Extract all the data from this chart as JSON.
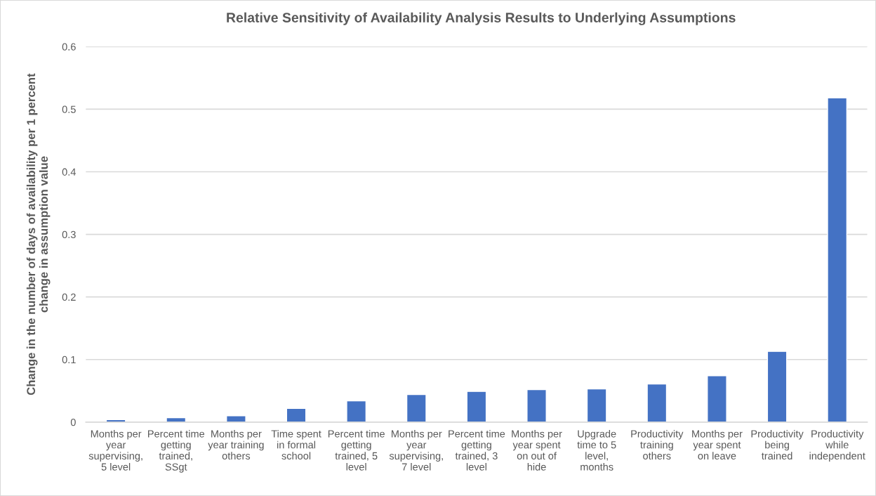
{
  "chart_data": {
    "type": "bar",
    "title": "Relative Sensitivity of Availability Analysis Results to Underlying Assumptions",
    "ylabel": "Change in the number of days of availability per 1 percent change in assumption value",
    "categories": [
      "Months per year supervising, 5 level",
      "Percent time getting trained, SSgt",
      "Months per year training others",
      "Time spent in formal school",
      "Percent time getting trained, 5 level",
      "Months per year supervising, 7 level",
      "Percent time getting trained, 3 level",
      "Months per year spent on out of hide",
      "Upgrade time to 5 level, months",
      "Productivity training others",
      "Months per year spent on leave",
      "Productivity being trained",
      "Productivity while independent"
    ],
    "values": [
      0.004,
      0.007,
      0.01,
      0.022,
      0.034,
      0.044,
      0.049,
      0.052,
      0.053,
      0.061,
      0.074,
      0.113,
      0.518
    ],
    "color": "#4472c4",
    "ylim": [
      0,
      0.6
    ],
    "yticks": [
      0,
      0.1,
      0.2,
      0.3,
      0.4,
      0.5,
      0.6
    ],
    "grid": "y"
  }
}
